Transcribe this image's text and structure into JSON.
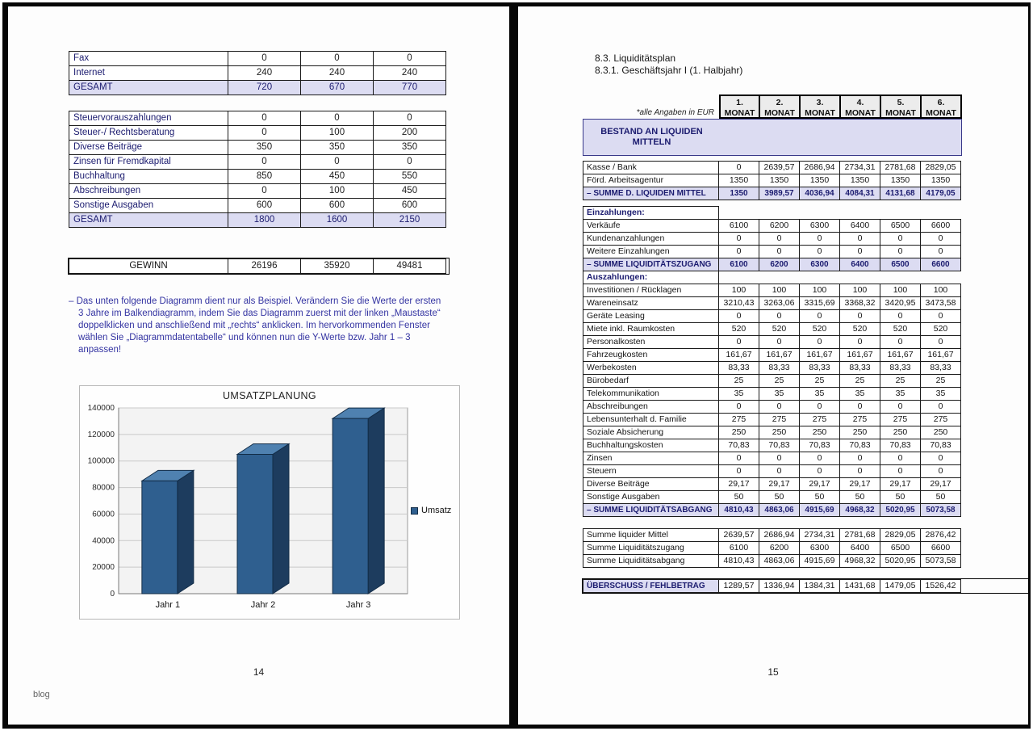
{
  "left_page": {
    "page_number": "14",
    "table1": {
      "rows": [
        {
          "label": "Fax",
          "values": [
            "0",
            "0",
            "0"
          ]
        },
        {
          "label": "Internet",
          "values": [
            "240",
            "240",
            "240"
          ]
        },
        {
          "label": "GESAMT",
          "values": [
            "720",
            "670",
            "770"
          ],
          "type": "total"
        }
      ]
    },
    "table2": {
      "rows": [
        {
          "label": "Steuervorauszahlungen",
          "values": [
            "0",
            "0",
            "0"
          ]
        },
        {
          "label": "Steuer-/ Rechtsberatung",
          "values": [
            "0",
            "100",
            "200"
          ]
        },
        {
          "label": "Diverse Beiträge",
          "values": [
            "350",
            "350",
            "350"
          ]
        },
        {
          "label": "Zinsen für Fremdkapital",
          "values": [
            "0",
            "0",
            "0"
          ]
        },
        {
          "label": "Buchhaltung",
          "values": [
            "850",
            "450",
            "550"
          ]
        },
        {
          "label": "Abschreibungen",
          "values": [
            "0",
            "100",
            "450"
          ]
        },
        {
          "label": "Sonstige Ausgaben",
          "values": [
            "600",
            "600",
            "600"
          ]
        },
        {
          "label": "GESAMT",
          "values": [
            "1800",
            "1600",
            "2150"
          ],
          "type": "total"
        }
      ]
    },
    "gewinn": {
      "rows": [
        {
          "label": "GEWINN",
          "values": [
            "26196",
            "35920",
            "49481"
          ],
          "type": "gewinn"
        }
      ]
    },
    "note": "– Das unten folgende Diagramm dient nur als Beispiel. Verändern Sie die Werte der ersten 3 Jahre im Balkendiagramm, indem Sie das Diagramm zuerst mit der linken „Maustaste“ doppelklicken und anschließend mit „rechts“ anklicken. Im hervorkommenden Fenster wählen Sie „Diagrammdatentabelle“ und können nun die Y-Werte bzw. Jahr 1 – 3 anpassen!",
    "watermark": "blog"
  },
  "chart_data": {
    "type": "bar",
    "style": "3d-bar",
    "title": "UMSATZPLANUNG",
    "categories": [
      "Jahr 1",
      "Jahr 2",
      "Jahr 3"
    ],
    "series": [
      {
        "name": "Umsatz",
        "values": [
          85000,
          105000,
          132000
        ]
      }
    ],
    "ylim": [
      0,
      140000
    ],
    "ytick_step": 20000,
    "grid": true,
    "legend_position": "right"
  },
  "right_page": {
    "page_number": "15",
    "heading1": "8.3. Liquiditätsplan",
    "heading2": "8.3.1. Geschäftsjahr I (1. Halbjahr)",
    "eur_note": "*alle Angaben in EUR",
    "months": [
      "1.",
      "2.",
      "3.",
      "4.",
      "5.",
      "6."
    ],
    "month_word": "MONAT",
    "band": "BESTAND AN LIQUIDEN MITTELN",
    "rows": [
      {
        "label": "Kasse / Bank",
        "values": [
          "0",
          "2639,57",
          "2686,94",
          "2734,31",
          "2781,68",
          "2829,05"
        ]
      },
      {
        "label": "Förd. Arbeitsagentur",
        "values": [
          "1350",
          "1350",
          "1350",
          "1350",
          "1350",
          "1350"
        ]
      },
      {
        "label": "– SUMME D. LIQUIDEN MITTEL",
        "values": [
          "1350",
          "3989,57",
          "4036,94",
          "4084,31",
          "4131,68",
          "4179,05"
        ],
        "type": "summe"
      },
      {
        "type": "gap"
      },
      {
        "label": "Einzahlungen:",
        "type": "section"
      },
      {
        "label": "Verkäufe",
        "values": [
          "6100",
          "6200",
          "6300",
          "6400",
          "6500",
          "6600"
        ]
      },
      {
        "label": "Kundenanzahlungen",
        "values": [
          "0",
          "0",
          "0",
          "0",
          "0",
          "0"
        ]
      },
      {
        "label": "Weitere Einzahlungen",
        "values": [
          "0",
          "0",
          "0",
          "0",
          "0",
          "0"
        ]
      },
      {
        "label": "– SUMME LIQUIDITÄTSZUGANG",
        "values": [
          "6100",
          "6200",
          "6300",
          "6400",
          "6500",
          "6600"
        ],
        "type": "summe"
      },
      {
        "label": "Auszahlungen:",
        "type": "section"
      },
      {
        "label": "Investitionen / Rücklagen",
        "values": [
          "100",
          "100",
          "100",
          "100",
          "100",
          "100"
        ]
      },
      {
        "label": "Wareneinsatz",
        "values": [
          "3210,43",
          "3263,06",
          "3315,69",
          "3368,32",
          "3420,95",
          "3473,58"
        ]
      },
      {
        "label": "Geräte Leasing",
        "values": [
          "0",
          "0",
          "0",
          "0",
          "0",
          "0"
        ]
      },
      {
        "label": "Miete inkl. Raumkosten",
        "values": [
          "520",
          "520",
          "520",
          "520",
          "520",
          "520"
        ]
      },
      {
        "label": "Personalkosten",
        "values": [
          "0",
          "0",
          "0",
          "0",
          "0",
          "0"
        ]
      },
      {
        "label": "Fahrzeugkosten",
        "values": [
          "161,67",
          "161,67",
          "161,67",
          "161,67",
          "161,67",
          "161,67"
        ]
      },
      {
        "label": "Werbekosten",
        "values": [
          "83,33",
          "83,33",
          "83,33",
          "83,33",
          "83,33",
          "83,33"
        ]
      },
      {
        "label": "Bürobedarf",
        "values": [
          "25",
          "25",
          "25",
          "25",
          "25",
          "25"
        ]
      },
      {
        "label": "Telekommunikation",
        "values": [
          "35",
          "35",
          "35",
          "35",
          "35",
          "35"
        ]
      },
      {
        "label": "Abschreibungen",
        "values": [
          "0",
          "0",
          "0",
          "0",
          "0",
          "0"
        ]
      },
      {
        "label": "Lebensunterhalt d. Familie",
        "values": [
          "275",
          "275",
          "275",
          "275",
          "275",
          "275"
        ]
      },
      {
        "label": "Soziale Absicherung",
        "values": [
          "250",
          "250",
          "250",
          "250",
          "250",
          "250"
        ]
      },
      {
        "label": "Buchhaltungskosten",
        "values": [
          "70,83",
          "70,83",
          "70,83",
          "70,83",
          "70,83",
          "70,83"
        ]
      },
      {
        "label": "Zinsen",
        "values": [
          "0",
          "0",
          "0",
          "0",
          "0",
          "0"
        ]
      },
      {
        "label": "Steuern",
        "values": [
          "0",
          "0",
          "0",
          "0",
          "0",
          "0"
        ]
      },
      {
        "label": "Diverse Beiträge",
        "values": [
          "29,17",
          "29,17",
          "29,17",
          "29,17",
          "29,17",
          "29,17"
        ]
      },
      {
        "label": "Sonstige Ausgaben",
        "values": [
          "50",
          "50",
          "50",
          "50",
          "50",
          "50"
        ]
      },
      {
        "label": "– SUMME LIQUIDITÄTSABGANG",
        "values": [
          "4810,43",
          "4863,06",
          "4915,69",
          "4968,32",
          "5020,95",
          "5073,58"
        ],
        "type": "summe"
      },
      {
        "type": "gap-lg"
      },
      {
        "label": "Summe liquider Mittel",
        "values": [
          "2639,57",
          "2686,94",
          "2734,31",
          "2781,68",
          "2829,05",
          "2876,42"
        ]
      },
      {
        "label": "Summe Liquiditätszugang",
        "values": [
          "6100",
          "6200",
          "6300",
          "6400",
          "6500",
          "6600"
        ]
      },
      {
        "label": "Summe Liquiditätsabgang",
        "values": [
          "4810,43",
          "4863,06",
          "4915,69",
          "4968,32",
          "5020,95",
          "5073,58"
        ]
      },
      {
        "type": "gap-lg"
      },
      {
        "label": "ÜBERSCHUSS / FEHLBETRAG",
        "values": [
          "1289,57",
          "1336,94",
          "1384,31",
          "1431,68",
          "1479,05",
          "1526,42"
        ],
        "type": "grand"
      }
    ]
  }
}
